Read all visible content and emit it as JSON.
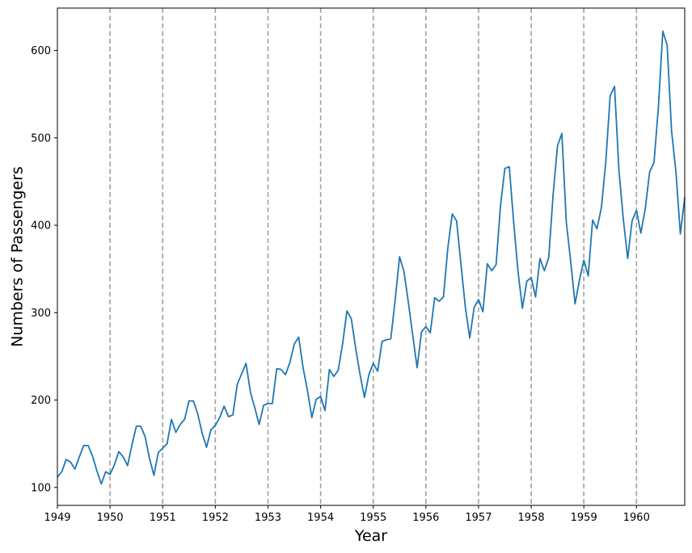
{
  "chart_data": {
    "type": "line",
    "title": "",
    "xlabel": "Year",
    "ylabel": "Numbers of Passengers",
    "xlim": [
      1949.0,
      1960.9167
    ],
    "ylim": [
      79.5,
      648.5
    ],
    "x_ticks": [
      1949,
      1950,
      1951,
      1952,
      1953,
      1954,
      1955,
      1956,
      1957,
      1958,
      1959,
      1960
    ],
    "x_tick_labels": [
      "1949",
      "1950",
      "1951",
      "1952",
      "1953",
      "1954",
      "1955",
      "1956",
      "1957",
      "1958",
      "1959",
      "1960"
    ],
    "y_ticks": [
      100,
      200,
      300,
      400,
      500,
      600
    ],
    "y_tick_labels": [
      "100",
      "200",
      "300",
      "400",
      "500",
      "600"
    ],
    "vlines": [
      1950,
      1951,
      1952,
      1953,
      1954,
      1955,
      1956,
      1957,
      1958,
      1959,
      1960
    ],
    "vline_color": "#a0a0a0",
    "series": [
      {
        "name": "Passengers",
        "color": "#1f77b4",
        "start_year": 1949,
        "step": 0.08333333,
        "values": [
          112,
          118,
          132,
          129,
          121,
          135,
          148,
          148,
          136,
          119,
          104,
          118,
          115,
          126,
          141,
          135,
          125,
          149,
          170,
          170,
          158,
          133,
          114,
          140,
          145,
          150,
          178,
          163,
          172,
          178,
          199,
          199,
          184,
          162,
          146,
          166,
          171,
          180,
          193,
          181,
          183,
          218,
          230,
          242,
          209,
          191,
          172,
          194,
          196,
          196,
          236,
          235,
          229,
          243,
          264,
          272,
          237,
          211,
          180,
          201,
          204,
          188,
          235,
          227,
          234,
          264,
          302,
          293,
          259,
          229,
          203,
          229,
          242,
          233,
          267,
          269,
          270,
          315,
          364,
          347,
          312,
          274,
          237,
          278,
          284,
          277,
          317,
          313,
          318,
          374,
          413,
          405,
          355,
          306,
          271,
          306,
          315,
          301,
          356,
          348,
          355,
          422,
          465,
          467,
          404,
          347,
          305,
          336,
          340,
          318,
          362,
          348,
          363,
          435,
          491,
          505,
          404,
          359,
          310,
          337,
          360,
          342,
          406,
          396,
          420,
          472,
          548,
          559,
          463,
          407,
          362,
          405,
          417,
          391,
          419,
          461,
          472,
          535,
          622,
          606,
          508,
          461,
          390,
          432
        ]
      }
    ]
  }
}
